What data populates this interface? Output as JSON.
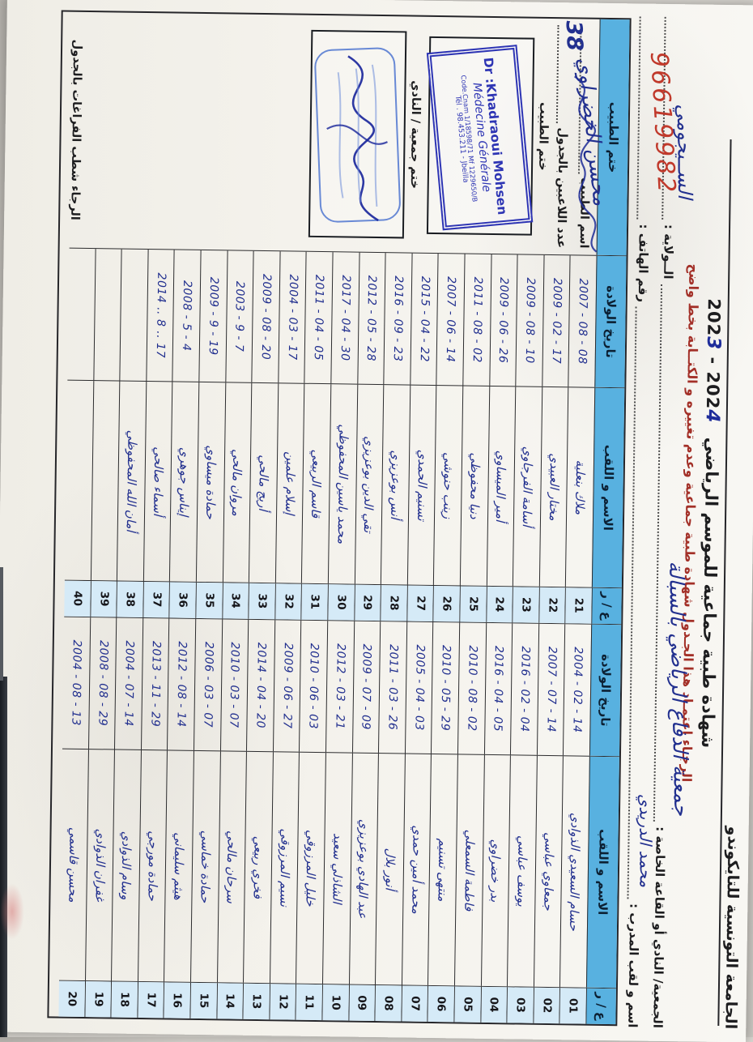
{
  "letterhead": {
    "org": "الجامعة التونسية للتايكوندو",
    "title": "شهادة طبية جماعية للموسم الرياضي",
    "season": {
      "y1_prefix": "202",
      "y1_last": "3",
      "sep": " - ",
      "y2_prefix": "202",
      "y2_last": "4"
    },
    "notice": "الرجـاء اعتمـاد هذا الجـدول شهادة طبية جماعية وعدم تغييره و الكتــابة بخط واضح",
    "club_label": "الجمعية/ النادي أو القاعة الخاصة :",
    "club_value": "جمعية الدفاع الرياضي بالسبالة",
    "wilaya_label": "الــولاية :",
    "wilaya_value": "الســيجومي",
    "coach_label": "اسم و لقب المدرب :",
    "coach_value": "محمد الدريدي",
    "phone_label": "رقم الهاتف :",
    "phone_value": "96619982"
  },
  "table": {
    "headers": {
      "num": "ع / ر",
      "name": "الاسم و اللقب",
      "dob": "تاريخ الولادة",
      "stamp": "ختم الطبيب"
    },
    "rows_g1": [
      {
        "no": "01",
        "name": "حسام السعيدي الذوادي",
        "date": "2004 - 02 - 14"
      },
      {
        "no": "02",
        "name": "جمعاوي عباسي",
        "date": "2007 - 07 - 14"
      },
      {
        "no": "03",
        "name": "يوسف عباسي",
        "date": "2016 - 02 - 04"
      },
      {
        "no": "04",
        "name": "بدر خضراوي",
        "date": "2016 - 04 - 05"
      },
      {
        "no": "05",
        "name": "فاطمة السمعلي",
        "date": "2010 - 08 - 02"
      },
      {
        "no": "06",
        "name": "منتهى تسنيم",
        "date": "2010 - 05 - 29"
      },
      {
        "no": "07",
        "name": "محمد أمين حمدي",
        "date": "2005 - 04 - 03"
      },
      {
        "no": "08",
        "name": "أنور بلال",
        "date": "2011 - 03 - 26"
      },
      {
        "no": "09",
        "name": "عبد الهادي بوعزيزي",
        "date": "2009 - 07 - 09"
      },
      {
        "no": "10",
        "name": "الشاذلي سعيد",
        "date": "2012 - 03 - 21"
      },
      {
        "no": "11",
        "name": "خليل المرزوقي",
        "date": "2010 - 06 - 03"
      },
      {
        "no": "12",
        "name": "نسيم المرزوقي",
        "date": "2009 - 06 - 27"
      },
      {
        "no": "13",
        "name": "فخري ربيعي",
        "date": "2014 - 04 - 20"
      },
      {
        "no": "14",
        "name": "سرحان مالحي",
        "date": "2010 - 03 - 07"
      },
      {
        "no": "15",
        "name": "حمادة خماسي",
        "date": "2006 - 03 - 07"
      },
      {
        "no": "16",
        "name": "هيثم سليماني",
        "date": "2012 - 08 - 14"
      },
      {
        "no": "17",
        "name": "حمادة مورجي",
        "date": "2013 - 11 - 29"
      },
      {
        "no": "18",
        "name": "وسام الذوادي",
        "date": "2004 - 07 - 14"
      },
      {
        "no": "19",
        "name": "غفران الذوادي",
        "date": "2008 - 08 - 29"
      },
      {
        "no": "20",
        "name": "محسن قاسمي",
        "date": "2004 - 08 - 13"
      }
    ],
    "rows_g2": [
      {
        "no": "21",
        "name": "ملاك بنعلية",
        "date": "2007 - 08 - 08"
      },
      {
        "no": "22",
        "name": "مختار العبيدي",
        "date": "2009 - 02 - 17"
      },
      {
        "no": "23",
        "name": "أسامة الفرجاوي",
        "date": "2009 - 08 - 10"
      },
      {
        "no": "24",
        "name": "أمير الميساوي",
        "date": "2009 - 06 - 26"
      },
      {
        "no": "25",
        "name": "دنيا محفوظي",
        "date": "2011 - 08 - 02"
      },
      {
        "no": "26",
        "name": "زينب حنوشي",
        "date": "2007 - 06 - 14"
      },
      {
        "no": "27",
        "name": "تسنيم الحمدي",
        "date": "2015 - 04 - 22"
      },
      {
        "no": "28",
        "name": "أنس بوعزيزي",
        "date": "2016 - 09 - 23"
      },
      {
        "no": "29",
        "name": "تقي الدين بوعزيزي",
        "date": "2012 - 05 - 28"
      },
      {
        "no": "30",
        "name": "محمد ياسين المحفوظي",
        "date": "2017 - 04 - 30"
      },
      {
        "no": "31",
        "name": "قاسم الربيعي",
        "date": "2011 - 04 - 05"
      },
      {
        "no": "32",
        "name": "إسلام علمين",
        "date": "2004 - 03 - 17"
      },
      {
        "no": "33",
        "name": "أريج مالحي",
        "date": "2009 - 08 - 20"
      },
      {
        "no": "34",
        "name": "مروان مالحي",
        "date": "2003 - 9 - 7"
      },
      {
        "no": "35",
        "name": "حمادة ميساوي",
        "date": "2009 - 9 - 19"
      },
      {
        "no": "36",
        "name": "إيناس جوهري",
        "date": "2008 - 5 - 4"
      },
      {
        "no": "37",
        "name": "أسماء صالحي",
        "date": "2014 .. 8 .. 17"
      },
      {
        "no": "38",
        "name": "أمان الله المحفوظي",
        "date": ""
      },
      {
        "no": "39",
        "name": "",
        "date": ""
      },
      {
        "no": "40",
        "name": "",
        "date": ""
      }
    ]
  },
  "side": {
    "doctor_name_label": "اسم الطبيب",
    "doctor_signature": "محسن الخضراوي",
    "players_count_label": "عدد اللاعبين بالجدول",
    "players_count": "38",
    "doctor_stamp_label": "ختم الطبيب",
    "stamp": {
      "l1": "Dr :Khadraoui Mohsen",
      "l2": "Médecine Générale",
      "l3": "Code.Cnam 1/18598/71 Mf 1229650/B",
      "l4": "Tél . 98.453.211 - Jbeilla"
    },
    "club_stamp_label": "ختم جمعية / النادي",
    "note": "الرجاء شطب الفراغات بالجدول"
  }
}
